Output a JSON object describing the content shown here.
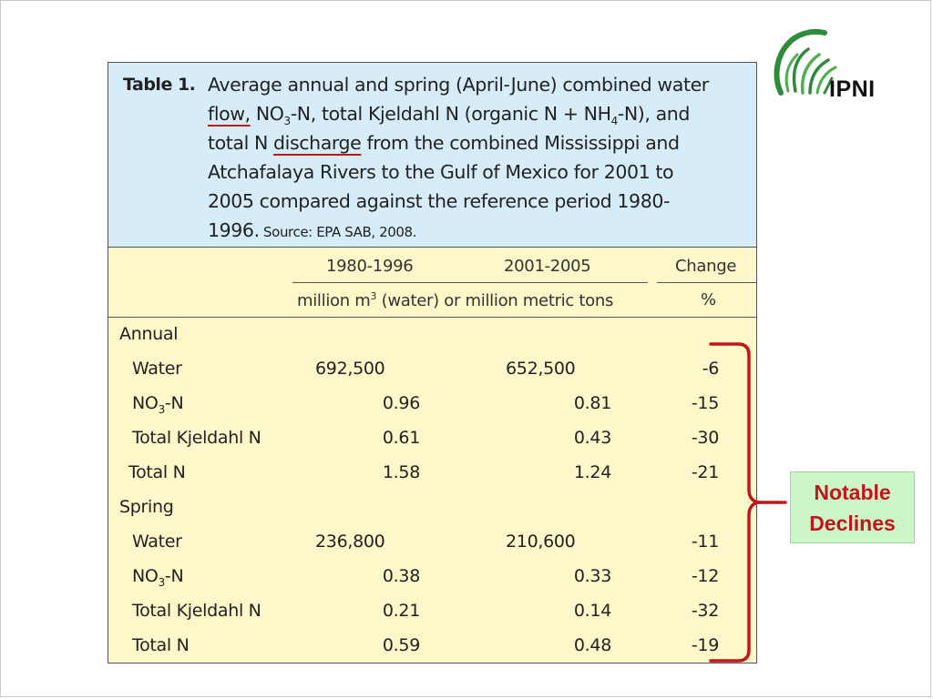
{
  "caption": {
    "label": "Table 1.",
    "t1": "Average annual and spring (April-June) combined water",
    "t_flow": "flow,",
    "t2": " NO",
    "t2_sub": "3",
    "t3": "-N, total Kjeldahl N (organic N + NH",
    "t3_sub": "4",
    "t4": "-N), and",
    "t5": "total N ",
    "t_discharge": "discharge",
    "t6": " from the combined Mississippi and",
    "t7": "Atchafalaya Rivers to the Gulf of Mexico for 2001 to",
    "t8": "2005 compared against the reference period 1980-",
    "t9": "1996.",
    "source": " Source: EPA SAB, 2008."
  },
  "header": {
    "col1": "1980-1996",
    "col2": "2001-2005",
    "col3": "Change",
    "units_pre": "million m",
    "units_sup": "3",
    "units_post": " (water) or million metric tons",
    "units_pct": "%"
  },
  "sections": {
    "annual": "Annual",
    "spring": "Spring"
  },
  "rows": {
    "a_water": {
      "label": "Water",
      "v1": "692,500",
      "v2": "652,500",
      "chg": "-6"
    },
    "a_no3": {
      "label_pre": "NO",
      "label_sub": "3",
      "label_post": "-N",
      "v1": "0.96",
      "v2": "0.81",
      "chg": "-15"
    },
    "a_tkn": {
      "label": "Total Kjeldahl N",
      "v1": "0.61",
      "v2": "0.43",
      "chg": "-30"
    },
    "a_tn": {
      "label": "Total N",
      "v1": "1.58",
      "v2": "1.24",
      "chg": "-21"
    },
    "s_water": {
      "label": "Water",
      "v1": "236,800",
      "v2": "210,600",
      "chg": "-11"
    },
    "s_no3": {
      "label_pre": "NO",
      "label_sub": "3",
      "label_post": "-N",
      "v1": "0.38",
      "v2": "0.33",
      "chg": "-12"
    },
    "s_tkn": {
      "label": "Total Kjeldahl N",
      "v1": "0.21",
      "v2": "0.14",
      "chg": "-32"
    },
    "s_tn": {
      "label": "Total N",
      "v1": "0.59",
      "v2": "0.48",
      "chg": "-19"
    }
  },
  "callout": {
    "line1": "Notable",
    "line2": "Declines"
  },
  "logo": {
    "text": "IPNI"
  },
  "colors": {
    "caption_bg": "#d6ecf8",
    "table_bg": "#fef7c9",
    "accent_red": "#c0161c",
    "callout_bg": "#ccf5c8",
    "logo_green": "#2e8b3a"
  },
  "icons": {
    "logo": "ipni-grass-logo-icon",
    "bracket": "right-curly-bracket-icon"
  }
}
